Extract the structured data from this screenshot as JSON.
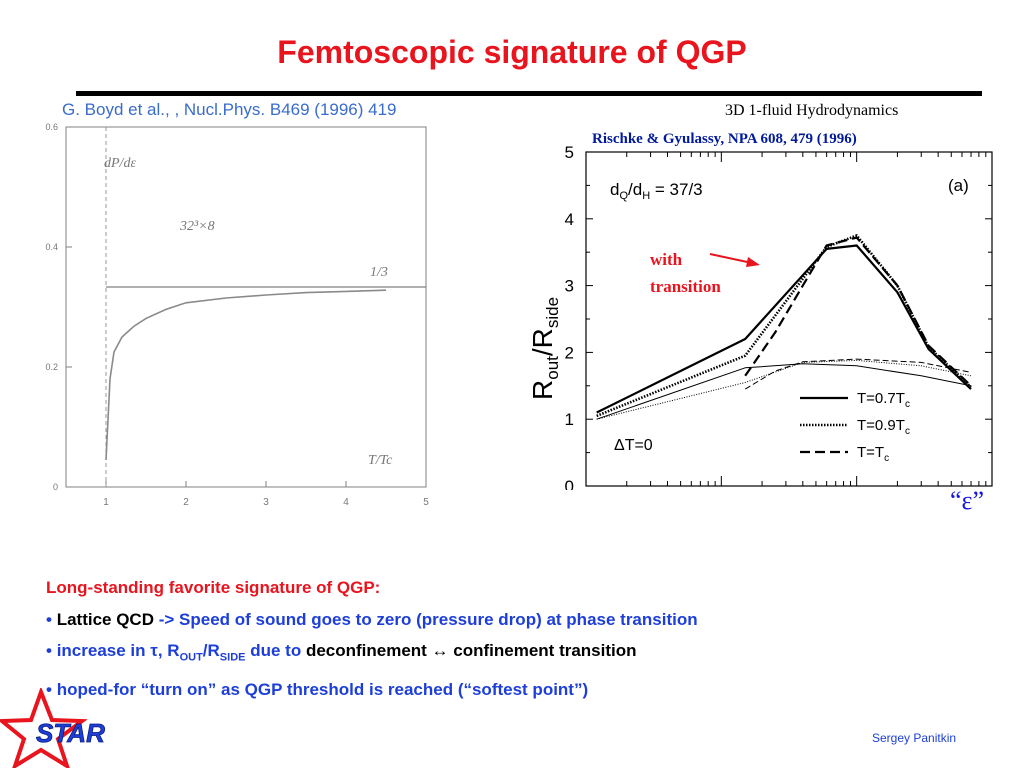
{
  "slide": {
    "title": "Femtoscopic signature of QGP",
    "ref_left": "G. Boyd et al., , Nucl.Phys. B469 (1996) 419",
    "ref_hydro": "3D 1-fluid Hydrodynamics",
    "ref_rischke": "Rischke & Gyulassy, NPA 608, 479 (1996)",
    "epsilon_label": "“ε”",
    "bullets": {
      "heading": "Long-standing favorite signature of QGP:",
      "b1_a": "Lattice QCD",
      "b1_b": " -> ",
      "b1_c": "Speed of sound goes to zero (pressure drop) at phase transition",
      "b2_a": "increase in τ, R",
      "b2_sub1": "OUT",
      "b2_b": "/R",
      "b2_sub2": "SIDE",
      "b2_c": " due to ",
      "b2_d": "deconfinement ↔ confinement transition",
      "b3": "hoped-for “turn on” as QGP threshold is reached (“softest point”)"
    },
    "author": "Sergey  Panitkin",
    "logo_text": "STAR",
    "colors": {
      "title": "#e8141e",
      "blue_text": "#1d3fd8",
      "ref_blue": "#3a6ccc",
      "logo_red": "#e8141e",
      "logo_blue": "#1d3fd8"
    }
  },
  "chart_data": [
    {
      "type": "line",
      "ylabel": "dP/dε",
      "xlabel": "T/Tc",
      "annotation": "32³×8",
      "reference_label": "1/3",
      "xlim": [
        0.5,
        5
      ],
      "ylim": [
        0,
        0.6
      ],
      "x_ticks": [
        1,
        2,
        3,
        4,
        5
      ],
      "y_ticks": [
        0,
        0.2,
        0.4,
        0.6
      ],
      "x_tick_labels": [
        "1",
        "2",
        "3",
        "4",
        "5"
      ],
      "y_tick_labels": [
        "0",
        "0.2",
        "0.4",
        "0.6"
      ],
      "reference_y": 0.3333,
      "vertical_line_x": 1,
      "series": [
        {
          "x": [
            1.0,
            1.05,
            1.1,
            1.2,
            1.35,
            1.5,
            1.75,
            2.0,
            2.5,
            3.0,
            3.5,
            4.0,
            4.5
          ],
          "values": [
            0.045,
            0.18,
            0.225,
            0.25,
            0.268,
            0.281,
            0.296,
            0.307,
            0.315,
            0.32,
            0.324,
            0.326,
            0.328
          ]
        }
      ]
    },
    {
      "type": "line",
      "ylabel": "Rout/Rside",
      "annotation_ratio": "dQ/dH = 37/3",
      "panel_label": "(a)",
      "delta_label": "ΔT=0",
      "arrow_label_1": "with",
      "arrow_label_2": "transition",
      "x_scale": "log",
      "x_domain": [
        0.1,
        100
      ],
      "ylim": [
        0,
        5
      ],
      "y_ticks": [
        0,
        1,
        2,
        3,
        4,
        5
      ],
      "y_tick_labels": [
        "0",
        "1",
        "2",
        "3",
        "4",
        "5"
      ],
      "legend": [
        {
          "label": "T=0.7Tc",
          "text": "T=0.7T",
          "sub": "c",
          "style": "solid"
        },
        {
          "label": "T=0.9Tc",
          "text": "T=0.9T",
          "sub": "c",
          "style": "dotted"
        },
        {
          "label": "T=Tc",
          "text": "T=T",
          "sub": "c",
          "style": "dashed"
        }
      ],
      "series": [
        {
          "name": "T=0.7Tc",
          "style": "solid",
          "width": 2.2,
          "x": [
            0.12,
            1.5,
            6,
            10,
            20,
            34,
            70
          ],
          "values": [
            1.1,
            2.2,
            3.55,
            3.6,
            2.9,
            2.05,
            1.45
          ]
        },
        {
          "name": "T=0.9Tc",
          "style": "dotted",
          "width": 2.6,
          "x": [
            0.12,
            1.5,
            6,
            10,
            20,
            34,
            70
          ],
          "values": [
            1.05,
            1.95,
            3.58,
            3.75,
            3.0,
            2.08,
            1.48
          ]
        },
        {
          "name": "T=Tc",
          "style": "dashed",
          "width": 2.2,
          "x": [
            1.5,
            2.5,
            4,
            6,
            10,
            20,
            34,
            70
          ],
          "values": [
            1.65,
            2.3,
            3.0,
            3.6,
            3.72,
            3.0,
            2.1,
            1.5
          ]
        },
        {
          "name": "",
          "style": "solid-thin",
          "width": 1.0,
          "x": [
            0.12,
            1.5,
            4,
            10,
            30,
            70
          ],
          "values": [
            1.0,
            1.77,
            1.83,
            1.8,
            1.65,
            1.5
          ]
        },
        {
          "name": "",
          "style": "dotted-thin",
          "width": 1.0,
          "x": [
            0.12,
            1.5,
            4,
            10,
            30,
            70
          ],
          "values": [
            1.0,
            1.55,
            1.85,
            1.88,
            1.8,
            1.65
          ]
        },
        {
          "name": "",
          "style": "dashed-thin",
          "width": 1.0,
          "x": [
            1.5,
            2.5,
            4,
            10,
            30,
            70
          ],
          "values": [
            1.45,
            1.72,
            1.86,
            1.9,
            1.85,
            1.7
          ]
        }
      ]
    }
  ]
}
